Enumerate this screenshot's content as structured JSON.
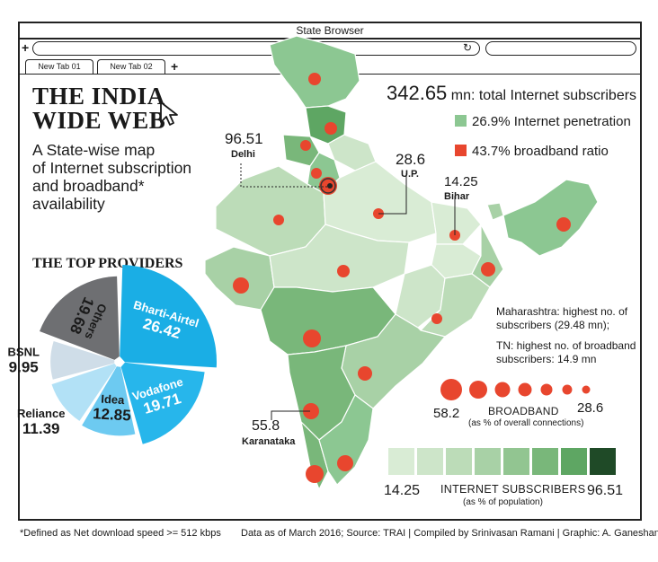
{
  "browser": {
    "window_title": "State Browser",
    "tabs": [
      "New Tab 01",
      "New Tab 02"
    ],
    "new_tab_symbol": "+",
    "reload_icon": "reload-icon"
  },
  "header": {
    "title_line1": "THE INDIA",
    "title_line2": "WIDE WEB",
    "subtitle_line1": "A State-wise map",
    "subtitle_line2": "of Internet subscription",
    "subtitle_line3": "and broadband*",
    "subtitle_line4": "availability"
  },
  "stats": {
    "total_value": "342.65",
    "total_suffix": " mn: total Internet subscribers",
    "penetration": "26.9% Internet penetration",
    "broadband_ratio": "43.7% broadband ratio",
    "penetration_color": "#8cc792",
    "broadband_color": "#e8462e"
  },
  "map_labels": {
    "delhi_value": "96.51",
    "delhi_name": "Delhi",
    "up_value": "28.6",
    "up_name": "U.P.",
    "bihar_value": "14.25",
    "bihar_name": "Bihar",
    "karnataka_value": "55.8",
    "karnataka_name": "Karanataka"
  },
  "notes": {
    "maharashtra_line1": "Maharashtra: highest no. of",
    "maharashtra_line2": "subscribers (29.48 mn);",
    "tn_line1": "TN:  highest no. of broadband",
    "tn_line2": "subscribers: 14.9 mn"
  },
  "broadband_legend": {
    "title": "BROADBAND",
    "subtitle": "(as % of overall connections)",
    "min_label": "58.2",
    "max_label": "28.6"
  },
  "subscribers_legend": {
    "title": "INTERNET SUBSCRIBERS",
    "subtitle": "(as % of population)",
    "min_label": "14.25",
    "max_label": "96.51",
    "colors": [
      "#d9ecd5",
      "#cde5c9",
      "#bcdcb8",
      "#a8d1a6",
      "#92c591",
      "#79b77a",
      "#5ea663",
      "#1f4a27"
    ]
  },
  "providers": {
    "title": "THE TOP PROVIDERS"
  },
  "chart_data": {
    "type": "pie",
    "title": "THE TOP PROVIDERS",
    "slices": [
      {
        "name": "Bharti-Airtel",
        "value": 26.42,
        "color": "#1aaee5",
        "label_color": "#ffffff"
      },
      {
        "name": "Vodafone",
        "value": 19.71,
        "color": "#27b6eb",
        "label_color": "#ffffff"
      },
      {
        "name": "Idea",
        "value": 12.85,
        "color": "#6dcaf1",
        "label_color": "#1a1a1a"
      },
      {
        "name": "Reliance",
        "value": 11.39,
        "color": "#b2e1f6",
        "label_color": "#1a1a1a"
      },
      {
        "name": "BSNL",
        "value": 9.95,
        "color": "#cfdde8",
        "label_color": "#1a1a1a"
      },
      {
        "name": "Others",
        "value": 19.68,
        "color": "#6e6f72",
        "label_color": "#1a1a1a"
      }
    ]
  },
  "footer": {
    "left": "*Defined as Net download speed >= 512 kbps",
    "right": "Data as of March 2016; Source: TRAI | Compiled by Srinivasan Ramani | Graphic: A. Ganeshan"
  }
}
